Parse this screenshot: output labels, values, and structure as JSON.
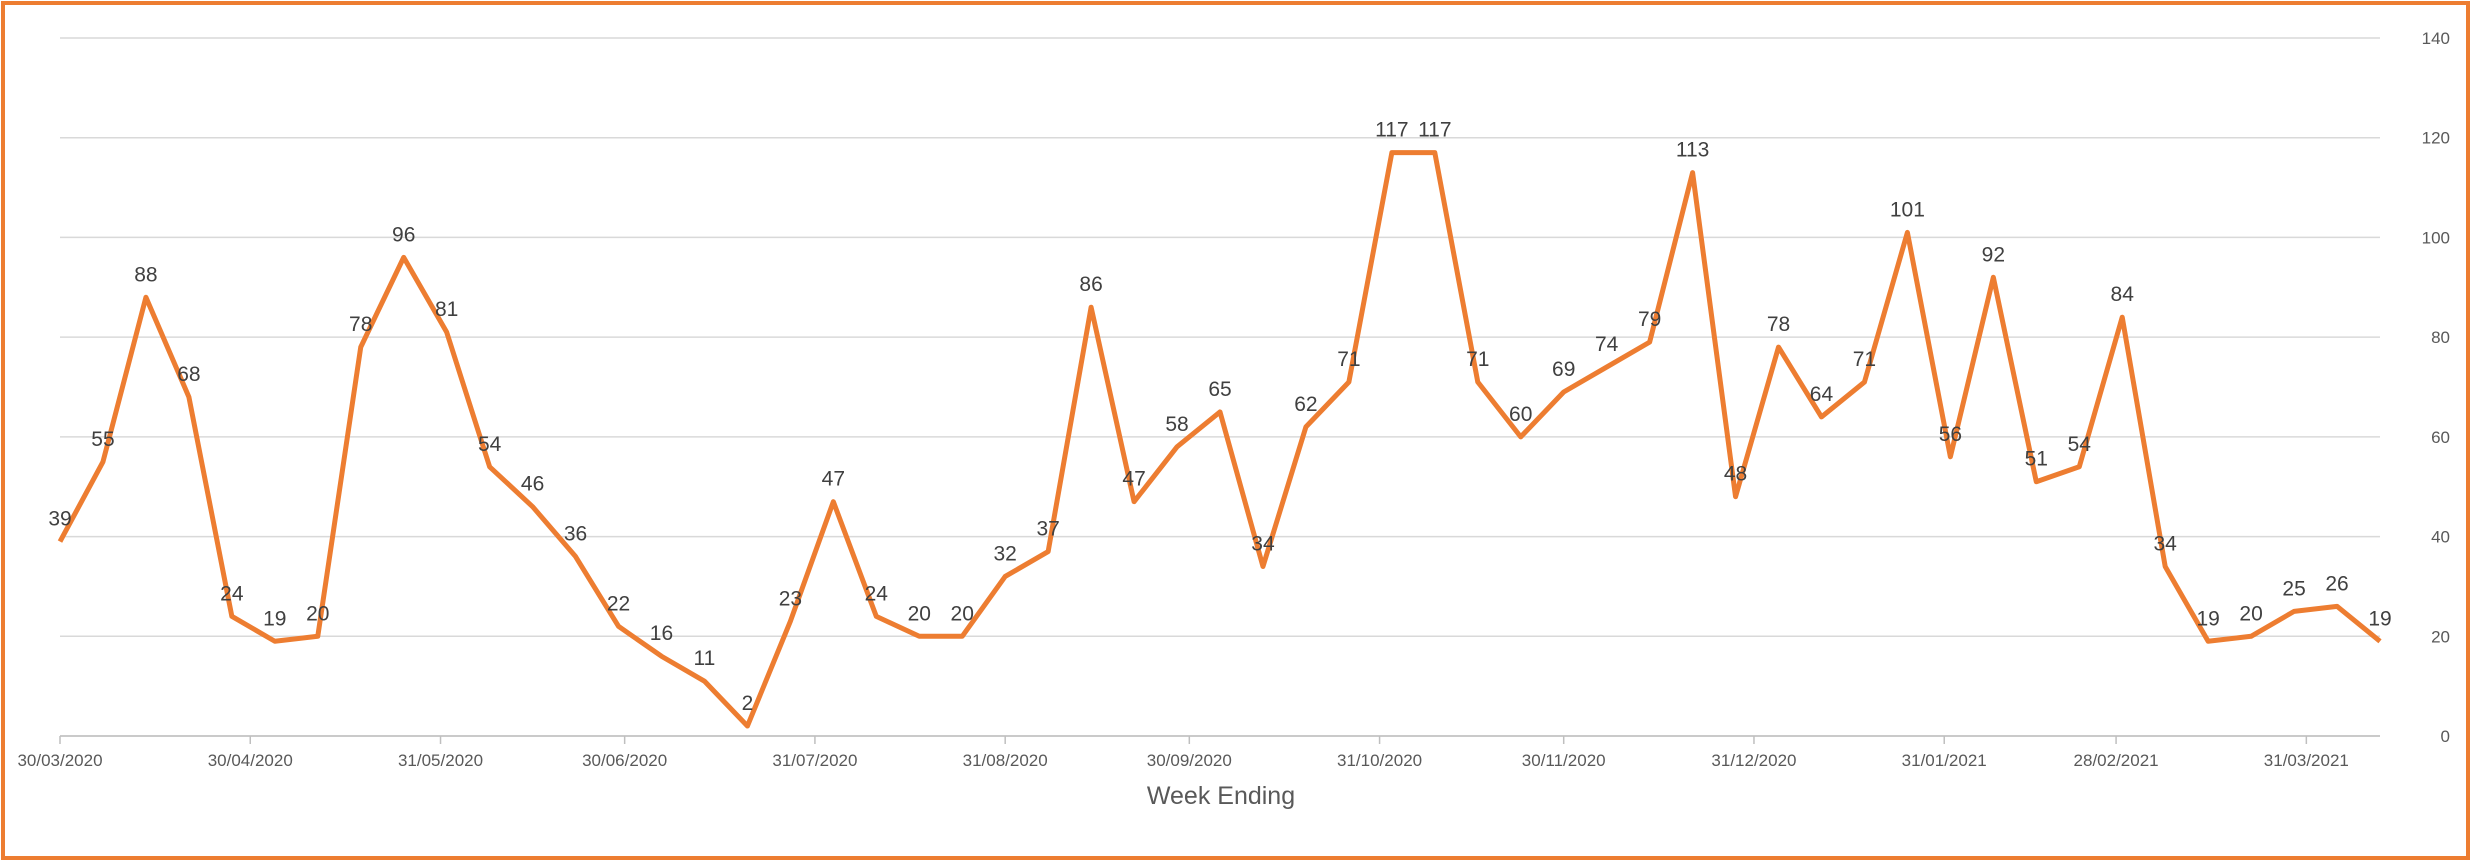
{
  "chart_data": {
    "type": "line",
    "x_label": "Week Ending",
    "x": [
      "30/03/2020",
      "06/04/2020",
      "13/04/2020",
      "20/04/2020",
      "27/04/2020",
      "04/05/2020",
      "11/05/2020",
      "18/05/2020",
      "25/05/2020",
      "01/06/2020",
      "08/06/2020",
      "15/06/2020",
      "22/06/2020",
      "29/06/2020",
      "06/07/2020",
      "13/07/2020",
      "20/07/2020",
      "27/07/2020",
      "03/08/2020",
      "10/08/2020",
      "17/08/2020",
      "24/08/2020",
      "31/08/2020",
      "07/09/2020",
      "14/09/2020",
      "21/09/2020",
      "28/09/2020",
      "05/10/2020",
      "12/10/2020",
      "19/10/2020",
      "26/10/2020",
      "02/11/2020",
      "09/11/2020",
      "16/11/2020",
      "23/11/2020",
      "30/11/2020",
      "07/12/2020",
      "14/12/2020",
      "21/12/2020",
      "28/12/2020",
      "04/01/2021",
      "11/01/2021",
      "18/01/2021",
      "25/01/2021",
      "01/02/2021",
      "08/02/2021",
      "15/02/2021",
      "22/02/2021",
      "01/03/2021",
      "08/03/2021",
      "15/03/2021",
      "22/03/2021",
      "29/03/2021",
      "05/04/2021",
      "12/04/2021"
    ],
    "series": [
      {
        "color": "#ed7d31",
        "values": [
          39,
          55,
          88,
          68,
          24,
          19,
          20,
          78,
          96,
          81,
          54,
          46,
          36,
          22,
          16,
          11,
          2,
          23,
          47,
          24,
          20,
          20,
          32,
          37,
          86,
          47,
          58,
          65,
          34,
          62,
          71,
          117,
          117,
          71,
          60,
          69,
          74,
          79,
          113,
          48,
          78,
          64,
          71,
          101,
          56,
          92,
          51,
          54,
          84,
          34,
          19,
          20,
          25,
          26,
          19
        ]
      }
    ],
    "xlim": [
      "30/03/2020",
      "12/04/2021"
    ],
    "xticks": [
      "30/03/2020",
      "30/04/2020",
      "31/05/2020",
      "30/06/2020",
      "31/07/2020",
      "31/08/2020",
      "30/09/2020",
      "31/10/2020",
      "30/11/2020",
      "31/12/2020",
      "31/01/2021",
      "28/02/2021",
      "31/03/2021"
    ],
    "ylim": [
      0,
      140
    ],
    "yticks": [
      0,
      20,
      40,
      60,
      80,
      100,
      120,
      140
    ],
    "y_axis_side": "right",
    "grid": true,
    "frame_color": "#ed7d31"
  }
}
